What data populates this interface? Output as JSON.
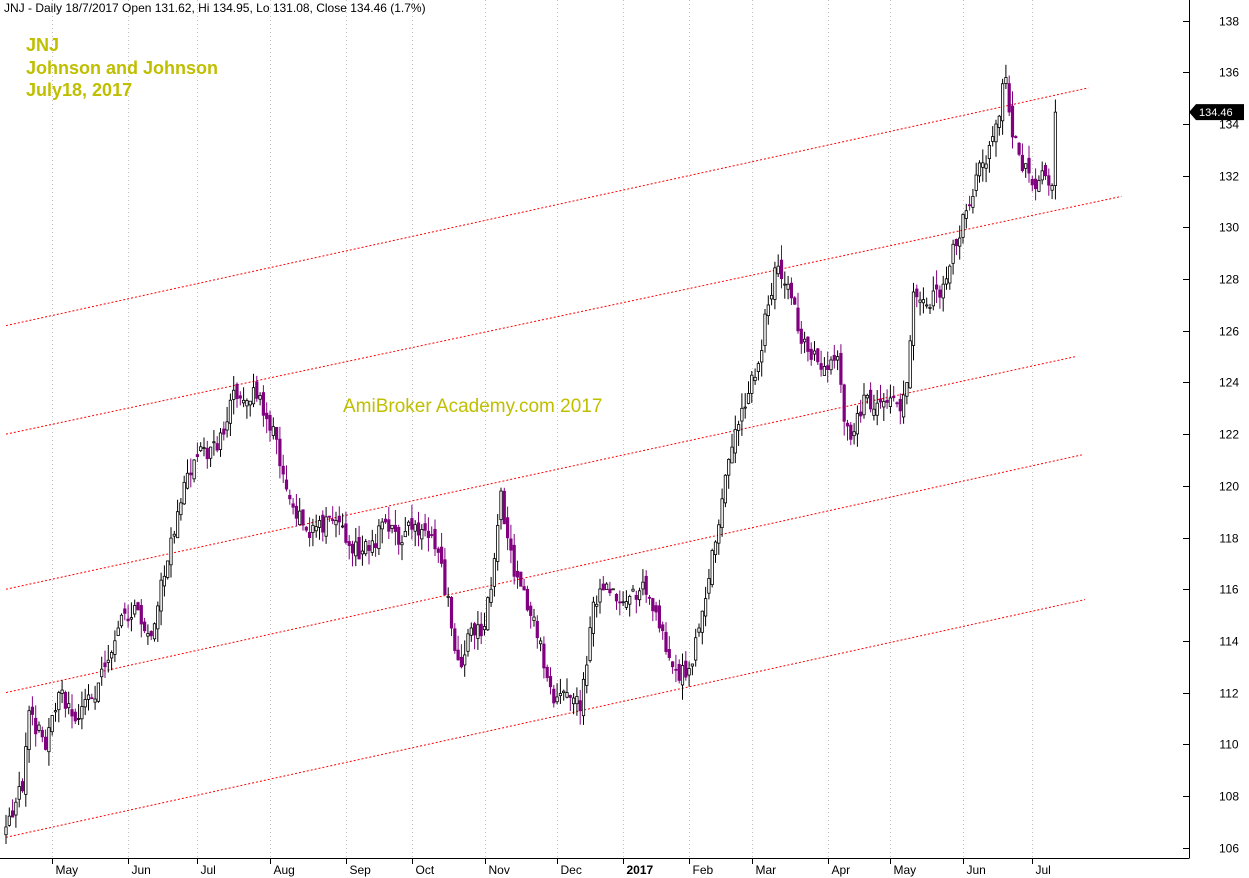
{
  "header": {
    "text": "JNJ - Daily 18/7/2017 Open 131.62, Hi 134.95, Lo 131.08, Close 134.46 (1.7%)"
  },
  "title_block": {
    "lines": [
      "JNJ",
      "Johnson and Johnson",
      "July18, 2017"
    ]
  },
  "watermark": "AmiBroker Academy.com  2017",
  "last_price_label": "134.46",
  "colors": {
    "up": "#000000",
    "down": "#800080",
    "channel": "#ff0000",
    "grid": "#c0c0c0",
    "text_accent": "#bfbf00"
  },
  "chart_data": {
    "type": "candlestick",
    "ylim": [
      105.6,
      138.8
    ],
    "yticks": [
      106,
      108,
      110,
      112,
      114,
      116,
      118,
      120,
      122,
      124,
      126,
      128,
      130,
      132,
      134,
      136,
      138
    ],
    "xticks": [
      {
        "label": "May",
        "bar": 14
      },
      {
        "label": "Jun",
        "bar": 37
      },
      {
        "label": "Jul",
        "bar": 58
      },
      {
        "label": "Aug",
        "bar": 80
      },
      {
        "label": "Sep",
        "bar": 103
      },
      {
        "label": "Oct",
        "bar": 123
      },
      {
        "label": "Nov",
        "bar": 145
      },
      {
        "label": "Dec",
        "bar": 167
      },
      {
        "label": "2017",
        "bar": 187,
        "bold": true
      },
      {
        "label": "Feb",
        "bar": 207
      },
      {
        "label": "Mar",
        "bar": 226
      },
      {
        "label": "Apr",
        "bar": 249
      },
      {
        "label": "May",
        "bar": 268
      },
      {
        "label": "Jun",
        "bar": 290
      },
      {
        "label": "Jul",
        "bar": 311
      }
    ],
    "close_anchors": [
      [
        0,
        106.8
      ],
      [
        5,
        108.2
      ],
      [
        7,
        111.3
      ],
      [
        12,
        109.8
      ],
      [
        16,
        112.0
      ],
      [
        22,
        111.0
      ],
      [
        26,
        111.8
      ],
      [
        30,
        113.0
      ],
      [
        34,
        114.5
      ],
      [
        40,
        115.2
      ],
      [
        44,
        114.2
      ],
      [
        48,
        116.5
      ],
      [
        52,
        119.0
      ],
      [
        57,
        121.0
      ],
      [
        62,
        121.5
      ],
      [
        66,
        122.0
      ],
      [
        69,
        123.7
      ],
      [
        73,
        123.3
      ],
      [
        77,
        123.5
      ],
      [
        82,
        121.8
      ],
      [
        86,
        119.5
      ],
      [
        92,
        118.0
      ],
      [
        97,
        118.8
      ],
      [
        101,
        118.6
      ],
      [
        105,
        117.4
      ],
      [
        110,
        117.5
      ],
      [
        114,
        118.6
      ],
      [
        120,
        117.8
      ],
      [
        124,
        118.5
      ],
      [
        128,
        118.0
      ],
      [
        132,
        117.0
      ],
      [
        135,
        114.5
      ],
      [
        138,
        113.0
      ],
      [
        141,
        114.5
      ],
      [
        144,
        114.2
      ],
      [
        147,
        116.0
      ],
      [
        150,
        119.8
      ],
      [
        154,
        116.5
      ],
      [
        158,
        115.2
      ],
      [
        162,
        114.0
      ],
      [
        166,
        111.6
      ],
      [
        170,
        112.0
      ],
      [
        174,
        111.3
      ],
      [
        178,
        115.5
      ],
      [
        182,
        116.2
      ],
      [
        186,
        115.5
      ],
      [
        190,
        116.0
      ],
      [
        194,
        115.8
      ],
      [
        198,
        114.5
      ],
      [
        202,
        113.0
      ],
      [
        206,
        112.6
      ],
      [
        210,
        114.5
      ],
      [
        214,
        117.5
      ],
      [
        217,
        119.5
      ],
      [
        220,
        121.5
      ],
      [
        223,
        123.0
      ],
      [
        227,
        124.2
      ],
      [
        231,
        127.0
      ],
      [
        234,
        128.5
      ],
      [
        237,
        127.8
      ],
      [
        240,
        126.0
      ],
      [
        243,
        125.2
      ],
      [
        246,
        124.8
      ],
      [
        249,
        124.5
      ],
      [
        252,
        125.0
      ],
      [
        254,
        122.5
      ],
      [
        256,
        121.8
      ],
      [
        258,
        122.8
      ],
      [
        261,
        123.5
      ],
      [
        264,
        123.2
      ],
      [
        268,
        123.4
      ],
      [
        271,
        122.9
      ],
      [
        273,
        124.0
      ],
      [
        275,
        127.5
      ],
      [
        279,
        127.0
      ],
      [
        283,
        127.3
      ],
      [
        286,
        128.5
      ],
      [
        290,
        130.5
      ],
      [
        293,
        131.2
      ],
      [
        296,
        132.5
      ],
      [
        300,
        134.0
      ],
      [
        303,
        135.8
      ],
      [
        305,
        133.5
      ],
      [
        308,
        132.2
      ],
      [
        312,
        131.5
      ],
      [
        315,
        132.0
      ],
      [
        317,
        131.62
      ],
      [
        318,
        134.46
      ]
    ],
    "series": [
      {
        "type": "candles",
        "last": {
          "open": 131.62,
          "high": 134.95,
          "low": 131.08,
          "close": 134.46
        }
      },
      {
        "name": "",
        "type": "channel-line",
        "from": {
          "bar": 0,
          "y": 126.2
        },
        "to": {
          "bar": 328,
          "y": 135.4
        }
      },
      {
        "name": "",
        "type": "channel-line",
        "from": {
          "bar": 0,
          "y": 122.0
        },
        "to": {
          "bar": 338,
          "y": 131.2
        }
      },
      {
        "name": "",
        "type": "channel-line",
        "from": {
          "bar": 0,
          "y": 116.0
        },
        "to": {
          "bar": 324,
          "y": 125.0
        }
      },
      {
        "name": "",
        "type": "channel-line",
        "from": {
          "bar": 0,
          "y": 112.0
        },
        "to": {
          "bar": 326,
          "y": 121.2
        }
      },
      {
        "name": "",
        "type": "channel-line",
        "from": {
          "bar": 0,
          "y": 106.4
        },
        "to": {
          "bar": 327,
          "y": 115.6
        }
      }
    ],
    "grid": true,
    "title": "",
    "xlabel": "",
    "ylabel": ""
  }
}
